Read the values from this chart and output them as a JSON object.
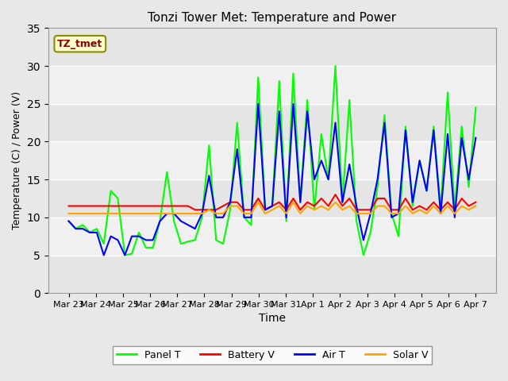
{
  "title": "Tonzi Tower Met: Temperature and Power",
  "xlabel": "Time",
  "ylabel": "Temperature (C) / Power (V)",
  "annotation": "TZ_tmet",
  "ylim": [
    0,
    35
  ],
  "yticks": [
    0,
    5,
    10,
    15,
    20,
    25,
    30,
    35
  ],
  "x_labels": [
    "Mar 23",
    "Mar 24",
    "Mar 25",
    "Mar 26",
    "Mar 27",
    "Mar 28",
    "Mar 29",
    "Mar 30",
    "Mar 31",
    "Apr 1",
    "Apr 2",
    "Apr 3",
    "Apr 4",
    "Apr 5",
    "Apr 6",
    "Apr 7"
  ],
  "colors": {
    "panel_t": "#00FF00",
    "battery_v": "#FF0000",
    "air_t": "#0000FF",
    "solar_v": "#FFA500"
  },
  "bg_color": "#E8E8E8",
  "plot_bg": "#F5F5F5",
  "panel_t": [
    9.5,
    8.5,
    9.0,
    8.0,
    8.5,
    6.5,
    13.5,
    12.5,
    5.0,
    5.2,
    8.0,
    6.0,
    6.0,
    9.5,
    16.0,
    9.5,
    6.5,
    6.8,
    7.0,
    10.0,
    19.5,
    7.0,
    6.5,
    11.0,
    22.5,
    10.0,
    9.0,
    28.5,
    11.0,
    11.5,
    28.0,
    9.5,
    29.0,
    12.0,
    25.5,
    11.0,
    21.0,
    15.0,
    30.0,
    12.0,
    25.5,
    9.5,
    5.0,
    8.0,
    14.0,
    23.5,
    10.5,
    7.5,
    22.0,
    11.5,
    17.5,
    13.5,
    22.0,
    11.0,
    26.5,
    11.0,
    22.0,
    14.0,
    24.5
  ],
  "battery_v": [
    11.5,
    11.5,
    11.5,
    11.5,
    11.5,
    11.5,
    11.5,
    11.5,
    11.5,
    11.5,
    11.5,
    11.5,
    11.5,
    11.5,
    11.5,
    11.5,
    11.5,
    11.5,
    11.0,
    11.0,
    11.0,
    11.0,
    11.5,
    12.0,
    12.0,
    11.0,
    11.0,
    12.5,
    11.0,
    11.5,
    12.0,
    11.0,
    12.5,
    11.0,
    12.0,
    11.5,
    12.5,
    11.5,
    13.0,
    11.5,
    12.5,
    11.0,
    11.0,
    11.0,
    12.5,
    12.5,
    11.0,
    11.0,
    12.5,
    11.0,
    11.5,
    11.0,
    12.0,
    11.0,
    12.0,
    11.0,
    12.5,
    11.5,
    12.0
  ],
  "air_t": [
    9.5,
    8.5,
    8.5,
    8.0,
    8.0,
    5.0,
    7.5,
    7.0,
    5.0,
    7.5,
    7.5,
    7.0,
    7.0,
    9.5,
    10.5,
    10.5,
    9.5,
    9.0,
    8.5,
    10.5,
    15.5,
    10.0,
    10.0,
    12.0,
    19.0,
    10.0,
    10.0,
    25.0,
    11.0,
    11.5,
    24.0,
    10.0,
    25.0,
    12.0,
    24.0,
    15.0,
    17.5,
    15.0,
    22.5,
    12.0,
    17.0,
    11.5,
    7.0,
    10.5,
    15.0,
    22.5,
    10.0,
    10.5,
    21.5,
    12.0,
    17.5,
    13.5,
    21.5,
    10.5,
    21.0,
    10.0,
    20.5,
    15.0,
    20.5
  ],
  "solar_v": [
    10.5,
    10.5,
    10.5,
    10.5,
    10.5,
    10.5,
    10.5,
    10.5,
    10.5,
    10.5,
    10.5,
    10.5,
    10.5,
    10.5,
    10.5,
    10.5,
    10.5,
    10.5,
    10.5,
    10.5,
    11.0,
    10.5,
    10.5,
    11.5,
    11.5,
    10.5,
    10.5,
    12.0,
    10.5,
    11.0,
    11.5,
    10.5,
    12.0,
    10.5,
    11.5,
    11.0,
    11.5,
    11.0,
    12.0,
    11.0,
    11.5,
    10.5,
    10.5,
    10.5,
    11.5,
    11.5,
    10.5,
    10.5,
    11.5,
    10.5,
    11.0,
    10.5,
    11.5,
    10.5,
    11.5,
    10.5,
    11.5,
    11.0,
    11.5
  ]
}
